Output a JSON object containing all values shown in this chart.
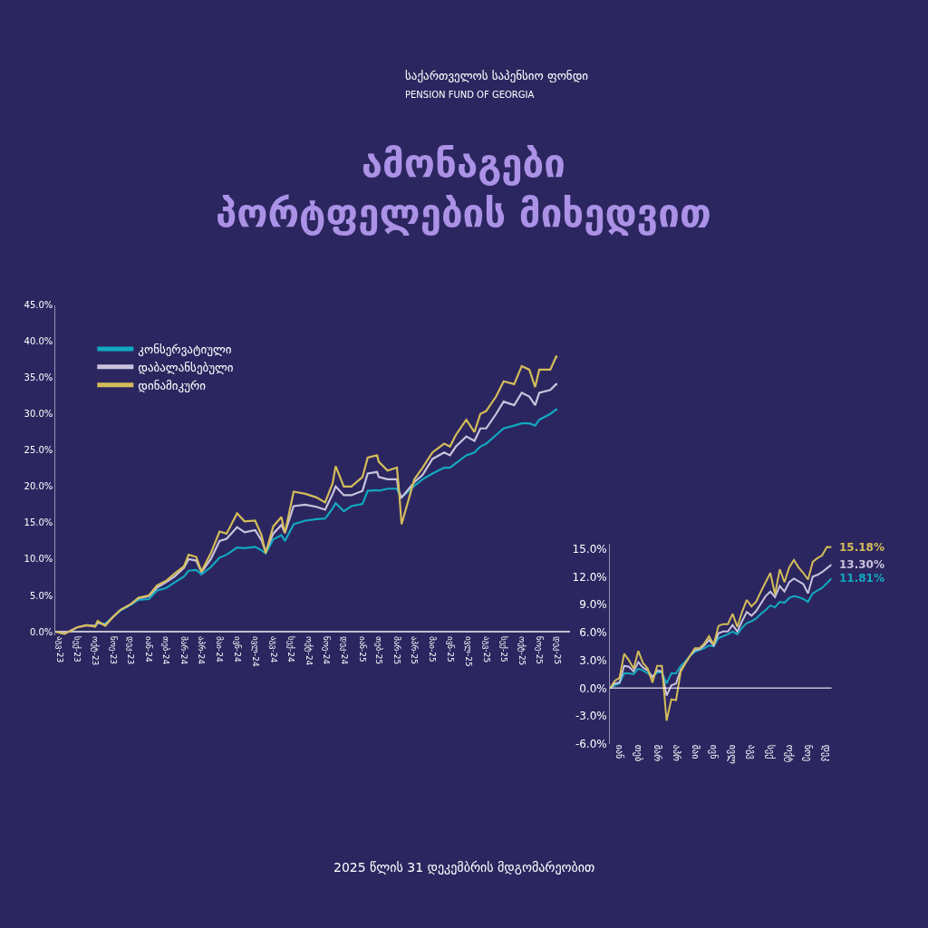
{
  "chart_data": [
    {
      "type": "line",
      "title": "ამონაგები\nპორტფელების მიხედვით",
      "annotations": [
        "საქართველოს საპენსიო ფონდი",
        "PENSION FUND OF GEORGIA",
        "2025 წლის 31 დეკემბრის მდგომარეობით"
      ],
      "x": [
        "2023-08-24",
        "2023-09-08",
        "2023-09-30",
        "2023-10-16",
        "2023-10-31",
        "2023-11-04",
        "2023-11-17",
        "2023-11-30",
        "2023-12-13",
        "2023-12-31",
        "2024-01-13",
        "2024-01-31",
        "2024-02-14",
        "2024-02-29",
        "2024-03-15",
        "2024-03-31",
        "2024-04-08",
        "2024-04-21",
        "2024-04-30",
        "2024-05-16",
        "2024-05-31",
        "2024-06-12",
        "2024-06-30",
        "2024-07-13",
        "2024-07-31",
        "2024-08-11",
        "2024-08-18",
        "2024-08-31",
        "2024-09-14",
        "2024-09-20",
        "2024-10-05",
        "2024-10-25",
        "2024-11-13",
        "2024-11-28",
        "2024-12-11",
        "2024-12-16",
        "2024-12-30",
        "2025-01-12",
        "2025-01-31",
        "2025-02-09",
        "2025-02-25",
        "2025-02-28",
        "2025-03-15",
        "2025-03-31",
        "2025-04-03",
        "2025-04-08",
        "2025-04-30",
        "2025-05-14",
        "2025-05-31",
        "2025-06-20",
        "2025-06-30",
        "2025-07-10",
        "2025-07-28",
        "2025-08-11",
        "2025-08-21",
        "2025-08-31",
        "2025-09-17",
        "2025-09-30",
        "2025-10-18",
        "2025-10-31",
        "2025-11-13",
        "2025-11-23",
        "2025-11-30",
        "2025-12-19",
        "2025-12-29",
        "2025-12-31"
      ],
      "series": [
        {
          "name": "კონსერვატიული",
          "color": "#12a9c0",
          "values": [
            null,
            null,
            null,
            null,
            0.8,
            1.2,
            1.1,
            2.0,
            2.9,
            3.7,
            4.4,
            4.5,
            5.7,
            6.0,
            6.8,
            7.6,
            8.4,
            8.5,
            7.9,
            8.9,
            10.2,
            10.6,
            11.6,
            11.5,
            11.7,
            11.2,
            10.8,
            12.7,
            13.3,
            12.5,
            14.8,
            15.3,
            15.5,
            15.6,
            17.0,
            17.7,
            16.6,
            17.3,
            17.6,
            19.4,
            19.5,
            19.4,
            19.7,
            19.7,
            19.1,
            18.5,
            20.1,
            21.0,
            21.8,
            22.6,
            22.6,
            23.2,
            24.3,
            24.7,
            25.5,
            25.9,
            27.1,
            28.0,
            28.4,
            28.7,
            28.7,
            28.4,
            29.2,
            30.0,
            30.6,
            30.6
          ]
        },
        {
          "name": "დაბალანსებული",
          "color": "#c9c3dd",
          "values": [
            0,
            -0.3,
            0.6,
            0.9,
            0.8,
            1.3,
            0.9,
            2.0,
            3.0,
            3.8,
            4.6,
            4.9,
            6.1,
            6.8,
            7.6,
            8.8,
            10.0,
            9.8,
            8.2,
            10.0,
            12.5,
            12.8,
            14.4,
            13.7,
            14.0,
            12.6,
            11.0,
            13.5,
            14.7,
            13.6,
            17.3,
            17.5,
            17.2,
            16.8,
            19.0,
            20.0,
            18.8,
            18.8,
            19.4,
            21.8,
            22.0,
            21.3,
            21.0,
            21.0,
            19.4,
            18.5,
            20.6,
            21.6,
            23.8,
            24.7,
            24.3,
            25.5,
            26.9,
            26.3,
            28.0,
            28.0,
            30.0,
            31.7,
            31.2,
            32.9,
            32.4,
            31.2,
            32.9,
            33.3,
            34.1,
            34.1
          ]
        },
        {
          "name": "დინამიკური",
          "color": "#d4bd5a",
          "values": [
            0,
            -0.3,
            0.6,
            0.9,
            0.7,
            1.5,
            0.8,
            2.0,
            3.0,
            3.8,
            4.7,
            5.0,
            6.4,
            7.0,
            8.0,
            9.0,
            10.6,
            10.3,
            8.3,
            10.8,
            13.8,
            13.5,
            16.3,
            15.2,
            15.3,
            13.3,
            10.8,
            14.5,
            15.8,
            13.6,
            19.3,
            19.0,
            18.5,
            17.8,
            20.5,
            22.8,
            20.0,
            20.0,
            21.3,
            24.0,
            24.3,
            23.4,
            22.2,
            22.6,
            20.1,
            14.8,
            21.0,
            22.6,
            24.7,
            25.9,
            25.5,
            27.1,
            29.2,
            27.5,
            30.0,
            30.4,
            32.4,
            34.5,
            34.1,
            36.6,
            36.1,
            33.7,
            36.1,
            36.1,
            37.9,
            37.8
          ]
        }
      ],
      "xlim": [
        "2023-08-24",
        "2026-01-22"
      ],
      "ylim": [
        -0.5,
        45
      ],
      "xticks": [
        {
          "value": "2023-08-31",
          "label": "აგვ-23"
        },
        {
          "value": "2023-09-30",
          "label": "სექ-23"
        },
        {
          "value": "2023-10-31",
          "label": "ოქტ-23"
        },
        {
          "value": "2023-11-30",
          "label": "ნოე-23"
        },
        {
          "value": "2023-12-31",
          "label": "დეკ-23"
        },
        {
          "value": "2024-01-31",
          "label": "იან-24"
        },
        {
          "value": "2024-02-29",
          "label": "თებ-24"
        },
        {
          "value": "2024-03-31",
          "label": "მარ-24"
        },
        {
          "value": "2024-04-30",
          "label": "აპრ-24"
        },
        {
          "value": "2024-05-31",
          "label": "მაი-24"
        },
        {
          "value": "2024-06-30",
          "label": "ივნ-24"
        },
        {
          "value": "2024-07-31",
          "label": "ივლ-24"
        },
        {
          "value": "2024-08-31",
          "label": "აგვ-24"
        },
        {
          "value": "2024-09-30",
          "label": "სექ-24"
        },
        {
          "value": "2024-10-31",
          "label": "ოქტ-24"
        },
        {
          "value": "2024-11-30",
          "label": "ნოე-24"
        },
        {
          "value": "2024-12-31",
          "label": "დეკ-24"
        },
        {
          "value": "2025-01-31",
          "label": "იან-25"
        },
        {
          "value": "2025-02-28",
          "label": "თებ-25"
        },
        {
          "value": "2025-03-31",
          "label": "მარ-25"
        },
        {
          "value": "2025-04-30",
          "label": "აპრ-25"
        },
        {
          "value": "2025-05-31",
          "label": "მაი-25"
        },
        {
          "value": "2025-06-30",
          "label": "ივნ-25"
        },
        {
          "value": "2025-07-31",
          "label": "ივლ-25"
        },
        {
          "value": "2025-08-31",
          "label": "აგვ-25"
        },
        {
          "value": "2025-09-30",
          "label": "სექ-25"
        },
        {
          "value": "2025-10-31",
          "label": "ოქტ-25"
        },
        {
          "value": "2025-11-30",
          "label": "ნოე-25"
        },
        {
          "value": "2025-12-31",
          "label": "დეკ-25"
        }
      ],
      "yticks": [
        {
          "value": 0,
          "label": "0.0%"
        },
        {
          "value": 5,
          "label": "5.0%"
        },
        {
          "value": 10,
          "label": "10.0%"
        },
        {
          "value": 15,
          "label": "15.0%"
        },
        {
          "value": 20,
          "label": "20.0%"
        },
        {
          "value": 25,
          "label": "25.0%"
        },
        {
          "value": 30,
          "label": "30.0%"
        },
        {
          "value": 35,
          "label": "35.0%"
        },
        {
          "value": 40,
          "label": "40.0%"
        },
        {
          "value": 45,
          "label": "45.0%"
        }
      ],
      "legend": "top left",
      "grid": false
    },
    {
      "type": "line",
      "categories": [
        null,
        null,
        "იან",
        null,
        null,
        null,
        "თებ",
        null,
        null,
        null,
        "მარ",
        null,
        null,
        null,
        "აპრ",
        null,
        null,
        null,
        "მაი",
        null,
        null,
        null,
        "ივნ",
        null,
        null,
        null,
        "ივლ",
        null,
        null,
        null,
        "აგვ",
        null,
        null,
        null,
        "სექ",
        null,
        null,
        null,
        "ოქტ",
        null,
        null,
        null,
        "ნოე",
        null,
        null,
        null,
        "დეკ",
        null
      ],
      "series": [
        {
          "color": "#12a9c0",
          "values": [
            0,
            0.3,
            0.5,
            1.6,
            1.6,
            1.5,
            2.1,
            1.9,
            1.6,
            1.2,
            1.7,
            1.7,
            0.5,
            1.6,
            1.6,
            2.4,
            2.9,
            3.5,
            3.9,
            4.1,
            4.3,
            4.6,
            4.5,
            5.4,
            5.6,
            5.8,
            6.1,
            5.8,
            6.5,
            7.0,
            7.2,
            7.5,
            8.0,
            8.4,
            8.9,
            8.7,
            9.3,
            9.2,
            9.7,
            9.9,
            9.8,
            9.6,
            9.3,
            10.2,
            10.5,
            10.8,
            11.3,
            11.81
          ],
          "value_labels": [
            null,
            null,
            null,
            null,
            null,
            null,
            null,
            null,
            null,
            null,
            null,
            null,
            null,
            null,
            null,
            null,
            null,
            null,
            null,
            null,
            null,
            null,
            null,
            null,
            null,
            null,
            null,
            null,
            null,
            null,
            null,
            null,
            null,
            null,
            null,
            null,
            null,
            null,
            null,
            null,
            null,
            null,
            null,
            null,
            null,
            null,
            null,
            "11.81%"
          ]
        },
        {
          "color": "#c9c3dd",
          "values": [
            0,
            0.5,
            0.6,
            2.4,
            2.3,
            1.8,
            2.8,
            2.2,
            1.9,
            1.2,
            1.9,
            1.8,
            -0.8,
            0.3,
            0.5,
            2.0,
            2.7,
            3.5,
            4.1,
            4.2,
            4.6,
            5.2,
            4.6,
            5.9,
            6.1,
            6.1,
            6.8,
            6.1,
            7.2,
            8.2,
            7.8,
            8.3,
            9.1,
            9.9,
            10.4,
            9.8,
            11.0,
            10.4,
            11.4,
            11.8,
            11.5,
            11.2,
            10.2,
            12.0,
            12.2,
            12.5,
            12.9,
            13.3
          ],
          "value_labels": [
            null,
            null,
            null,
            null,
            null,
            null,
            null,
            null,
            null,
            null,
            null,
            null,
            null,
            null,
            null,
            null,
            null,
            null,
            null,
            null,
            null,
            null,
            null,
            null,
            null,
            null,
            null,
            null,
            null,
            null,
            null,
            null,
            null,
            null,
            null,
            null,
            null,
            null,
            null,
            null,
            null,
            null,
            null,
            null,
            null,
            null,
            null,
            "13.30%"
          ]
        },
        {
          "color": "#d4bd5a",
          "values": [
            0,
            0.8,
            1.1,
            3.7,
            3.0,
            2.1,
            4.0,
            2.7,
            2.1,
            0.6,
            2.4,
            2.4,
            -3.5,
            -1.2,
            -1.3,
            1.8,
            2.7,
            3.5,
            4.3,
            4.3,
            4.8,
            5.6,
            4.7,
            6.7,
            6.9,
            6.9,
            8.0,
            6.6,
            8.2,
            9.5,
            8.8,
            9.3,
            10.4,
            11.4,
            12.4,
            10.1,
            12.8,
            11.4,
            13.0,
            13.8,
            13.0,
            12.4,
            11.7,
            13.6,
            14.0,
            14.3,
            15.2,
            15.18
          ],
          "value_labels": [
            null,
            null,
            null,
            null,
            null,
            null,
            null,
            null,
            null,
            null,
            null,
            null,
            null,
            null,
            null,
            null,
            null,
            null,
            null,
            null,
            null,
            null,
            null,
            null,
            null,
            null,
            null,
            null,
            null,
            null,
            null,
            null,
            null,
            null,
            null,
            null,
            null,
            null,
            null,
            null,
            null,
            null,
            null,
            null,
            null,
            null,
            null,
            "15.18%"
          ]
        }
      ],
      "ylim": [
        -6,
        15.5
      ],
      "ref_lines": [
        {
          "axis": "y",
          "value": 0
        }
      ],
      "yticks": [
        {
          "value": -6,
          "label": "-6.0%"
        },
        {
          "value": -3,
          "label": "-3.0%"
        },
        {
          "value": 0,
          "label": "0.0%"
        },
        {
          "value": 3,
          "label": "3.0%"
        },
        {
          "value": 6,
          "label": "6.0%"
        },
        {
          "value": 9,
          "label": "9.0%"
        },
        {
          "value": 12,
          "label": "12.0%"
        },
        {
          "value": 15,
          "label": "15.0%"
        }
      ],
      "legend": false,
      "grid": false
    }
  ]
}
